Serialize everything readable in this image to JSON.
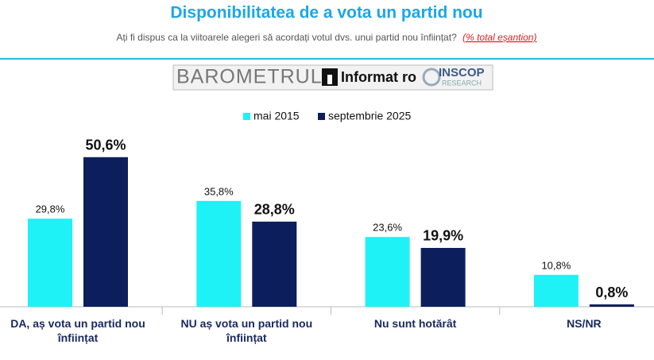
{
  "chart_data": {
    "type": "bar",
    "title": "Disponibilitatea de a vota un partid nou",
    "subtitle": "Ați fi dispus ca  la viitoarele alegeri să acordați votul dvs. unui partid nou înființat?",
    "subtitle_note": "(% total eșantion)",
    "logo": {
      "barometer": "BAROMETRUL",
      "partner": "Informat",
      "partner_suffix": "ro",
      "institute": "INSCOP",
      "institute_sub": "RESEARCH"
    },
    "categories": [
      "DA, aș vota un partid nou înființat",
      "NU aș vota un partid nou înființat",
      "Nu sunt hotărât",
      "NS/NR"
    ],
    "series": [
      {
        "name": "mai 2015",
        "color": "#1ef2f6",
        "values": [
          29.8,
          35.8,
          23.6,
          10.8
        ],
        "value_labels": [
          "29,8%",
          "35,8%",
          "23,6%",
          "10,8%"
        ]
      },
      {
        "name": "septembrie 2025",
        "color": "#0c1f5c",
        "values": [
          50.6,
          28.8,
          19.9,
          0.8
        ],
        "value_labels": [
          "50,6%",
          "28,8%",
          "19,9%",
          "0,8%"
        ]
      }
    ]
  }
}
